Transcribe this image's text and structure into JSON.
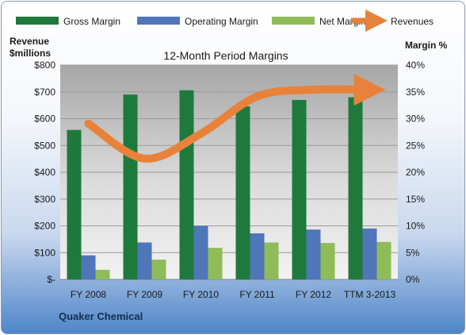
{
  "chart_data": {
    "type": "bar",
    "title": "12-Month Period Margins",
    "company": "Quaker Chemical",
    "categories": [
      "FY 2008",
      "FY 2009",
      "FY 2010",
      "FY 2011",
      "FY 2012",
      "TTM 3-2013"
    ],
    "y_left": {
      "label_line1": "Revenue",
      "label_line2": "$millions",
      "ylim": [
        0,
        800
      ],
      "ticks": [
        "$-",
        "$100",
        "$200",
        "$300",
        "$400",
        "$500",
        "$600",
        "$700",
        "$800"
      ]
    },
    "y_right": {
      "label": "Margin %",
      "ylim": [
        0,
        40
      ],
      "ticks": [
        "0%",
        "5%",
        "10%",
        "15%",
        "20%",
        "25%",
        "30%",
        "35%",
        "40%"
      ]
    },
    "series": [
      {
        "name": "Gross Margin",
        "axis": "right",
        "color": "#1e7a3c",
        "values": [
          27.9,
          34.5,
          35.3,
          32.3,
          33.5,
          34.0
        ]
      },
      {
        "name": "Operating Margin",
        "axis": "right",
        "color": "#4f76b8",
        "values": [
          4.5,
          6.9,
          10.0,
          8.6,
          9.3,
          9.5
        ]
      },
      {
        "name": "Net Margin",
        "axis": "right",
        "color": "#8fbc59",
        "values": [
          1.8,
          3.7,
          5.9,
          6.9,
          6.8,
          7.0
        ]
      }
    ],
    "line_series": {
      "name": "Revenues",
      "axis": "left",
      "color": "#e8823a",
      "values": [
        582,
        451,
        544,
        683,
        708,
        708
      ]
    },
    "grid": true,
    "legend_position": "top"
  }
}
